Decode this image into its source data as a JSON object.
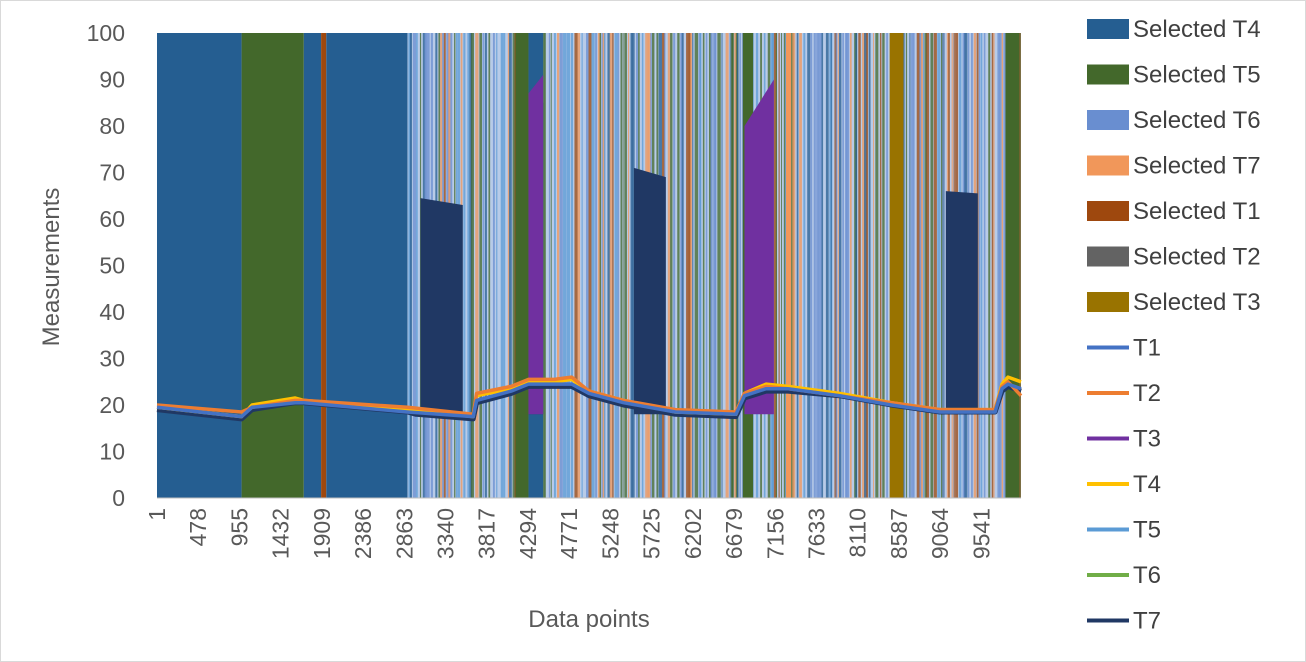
{
  "chart_data": {
    "type": "line",
    "xlabel": "Data points",
    "ylabel": "Measurements",
    "ylim": [
      0,
      100
    ],
    "yticks": [
      "0",
      "10",
      "20",
      "30",
      "40",
      "50",
      "60",
      "70",
      "80",
      "90",
      "100"
    ],
    "xlim": [
      1,
      10000
    ],
    "xticks": [
      "1",
      "478",
      "955",
      "1432",
      "1909",
      "2386",
      "2863",
      "3340",
      "3817",
      "4294",
      "4771",
      "5248",
      "5725",
      "6202",
      "6679",
      "7156",
      "7633",
      "8110",
      "8587",
      "9064",
      "9541"
    ],
    "legend_position": "right",
    "legend": [
      {
        "label": "Selected T4",
        "kind": "area",
        "color": "#255e91"
      },
      {
        "label": "Selected T5",
        "kind": "area",
        "color": "#43682b"
      },
      {
        "label": "Selected T6",
        "kind": "area",
        "color": "#698ed0"
      },
      {
        "label": "Selected T7",
        "kind": "area",
        "color": "#f1975a"
      },
      {
        "label": "Selected T1",
        "kind": "area",
        "color": "#9e480e"
      },
      {
        "label": "Selected T2",
        "kind": "area",
        "color": "#636363"
      },
      {
        "label": "Selected T3",
        "kind": "area",
        "color": "#997300"
      },
      {
        "label": "T1",
        "kind": "line",
        "color": "#4472c4"
      },
      {
        "label": "T2",
        "kind": "line",
        "color": "#ed7d31"
      },
      {
        "label": "T3",
        "kind": "line",
        "color": "#7030a0"
      },
      {
        "label": "T4",
        "kind": "line",
        "color": "#ffc000"
      },
      {
        "label": "T5",
        "kind": "line",
        "color": "#5b9bd5"
      },
      {
        "label": "T6",
        "kind": "line",
        "color": "#70ad47"
      },
      {
        "label": "T7",
        "kind": "line",
        "color": "#203864"
      }
    ],
    "selected_regions": [
      {
        "series": "Selected T4",
        "x0": 1,
        "x1": 980
      },
      {
        "series": "Selected T5",
        "x0": 980,
        "x1": 1700
      },
      {
        "series": "Selected T4",
        "x0": 1700,
        "x1": 1900
      },
      {
        "series": "Selected T1",
        "x0": 1900,
        "x1": 1960
      },
      {
        "series": "Selected T4",
        "x0": 1960,
        "x1": 2900
      },
      {
        "series": "Selected T4",
        "x0": 4300,
        "x1": 4470
      },
      {
        "series": "Selected T5",
        "x0": 4150,
        "x1": 4300
      },
      {
        "series": "Selected T5",
        "x0": 6780,
        "x1": 6900
      },
      {
        "series": "Selected T3",
        "x0": 8480,
        "x1": 8640
      },
      {
        "series": "Selected T7",
        "x0": 7280,
        "x1": 7340
      },
      {
        "series": "Selected T5",
        "x0": 9820,
        "x1": 9980
      }
    ],
    "series": [
      {
        "name": "T7",
        "color": "#203864",
        "points": [
          [
            1,
            19
          ],
          [
            980,
            17
          ],
          [
            1100,
            19
          ],
          [
            1600,
            20.5
          ],
          [
            1700,
            20.5
          ],
          [
            2900,
            18.5
          ],
          [
            3000,
            18
          ],
          [
            3660,
            17
          ],
          [
            3700,
            20.5
          ],
          [
            4100,
            22.5
          ],
          [
            4300,
            24
          ],
          [
            4600,
            24
          ],
          [
            4800,
            24
          ],
          [
            5000,
            22
          ],
          [
            5400,
            20
          ],
          [
            6000,
            18
          ],
          [
            6700,
            17.5
          ],
          [
            6800,
            21.5
          ],
          [
            7050,
            23
          ],
          [
            7300,
            23
          ],
          [
            7900,
            22
          ],
          [
            8500,
            20
          ],
          [
            9060,
            18.5
          ],
          [
            9700,
            18.5
          ],
          [
            9780,
            23
          ],
          [
            9850,
            24
          ],
          [
            10000,
            23
          ]
        ]
      },
      {
        "name": "T4",
        "color": "#ffc000",
        "points": [
          [
            1,
            19.5
          ],
          [
            980,
            17.5
          ],
          [
            1100,
            20
          ],
          [
            1600,
            21.5
          ],
          [
            1700,
            21
          ],
          [
            2900,
            19
          ],
          [
            3660,
            17.5
          ],
          [
            3700,
            22
          ],
          [
            4100,
            23.5
          ],
          [
            4300,
            25
          ],
          [
            4600,
            25
          ],
          [
            4800,
            25.5
          ],
          [
            5000,
            23
          ],
          [
            5400,
            21
          ],
          [
            6000,
            18.5
          ],
          [
            6700,
            18
          ],
          [
            6800,
            22.5
          ],
          [
            7050,
            24.5
          ],
          [
            7300,
            24
          ],
          [
            7900,
            22.5
          ],
          [
            8500,
            20.5
          ],
          [
            9060,
            19
          ],
          [
            9700,
            19
          ],
          [
            9780,
            24.5
          ],
          [
            9850,
            26
          ],
          [
            10000,
            25
          ]
        ]
      },
      {
        "name": "T2",
        "color": "#ed7d31",
        "points": [
          [
            1,
            20
          ],
          [
            980,
            18.5
          ],
          [
            1100,
            19.5
          ],
          [
            1600,
            21
          ],
          [
            1700,
            21
          ],
          [
            2900,
            19.5
          ],
          [
            3660,
            18
          ],
          [
            3700,
            22.5
          ],
          [
            4100,
            24
          ],
          [
            4300,
            25.5
          ],
          [
            4600,
            25.5
          ],
          [
            4800,
            26
          ],
          [
            5000,
            23
          ],
          [
            5400,
            21
          ],
          [
            6000,
            19
          ],
          [
            6700,
            18.5
          ],
          [
            6800,
            22.5
          ],
          [
            7050,
            24
          ],
          [
            7300,
            23.5
          ],
          [
            7900,
            22
          ],
          [
            8500,
            20.5
          ],
          [
            9060,
            19
          ],
          [
            9700,
            19
          ],
          [
            9780,
            24
          ],
          [
            9850,
            25
          ],
          [
            10000,
            22
          ]
        ]
      },
      {
        "name": "T1",
        "color": "#4472c4",
        "points": [
          [
            1,
            19.5
          ],
          [
            980,
            17.5
          ],
          [
            1100,
            19.5
          ],
          [
            1600,
            20.5
          ],
          [
            1700,
            20.5
          ],
          [
            2900,
            18.5
          ],
          [
            3660,
            17.5
          ],
          [
            3700,
            21
          ],
          [
            4100,
            23
          ],
          [
            4300,
            24.5
          ],
          [
            4600,
            24.5
          ],
          [
            4800,
            24.5
          ],
          [
            5000,
            22.5
          ],
          [
            5400,
            20.5
          ],
          [
            6000,
            18.5
          ],
          [
            6700,
            18
          ],
          [
            6800,
            22
          ],
          [
            7050,
            23.5
          ],
          [
            7300,
            23.5
          ],
          [
            7900,
            22
          ],
          [
            8500,
            20
          ],
          [
            9060,
            18.5
          ],
          [
            9700,
            18.5
          ],
          [
            9780,
            23.5
          ],
          [
            9850,
            24.5
          ],
          [
            10000,
            23.5
          ]
        ]
      }
    ],
    "plateaus": [
      {
        "series": "T7",
        "x0": 3050,
        "x1": 3540,
        "y0": 64.5,
        "y1": 63
      },
      {
        "series": "T7",
        "x0": 4300,
        "x1": 4470,
        "y0": 83.5,
        "y1": 85
      },
      {
        "series": "T3",
        "x0": 4300,
        "x1": 4470,
        "y0": 87,
        "y1": 91
      },
      {
        "series": "T7",
        "x0": 5520,
        "x1": 5890,
        "y0": 71,
        "y1": 69
      },
      {
        "series": "T3",
        "x0": 6800,
        "x1": 7140,
        "y0": 80,
        "y1": 90
      },
      {
        "series": "T7",
        "x0": 9130,
        "x1": 9500,
        "y0": 66,
        "y1": 65.5
      }
    ]
  }
}
